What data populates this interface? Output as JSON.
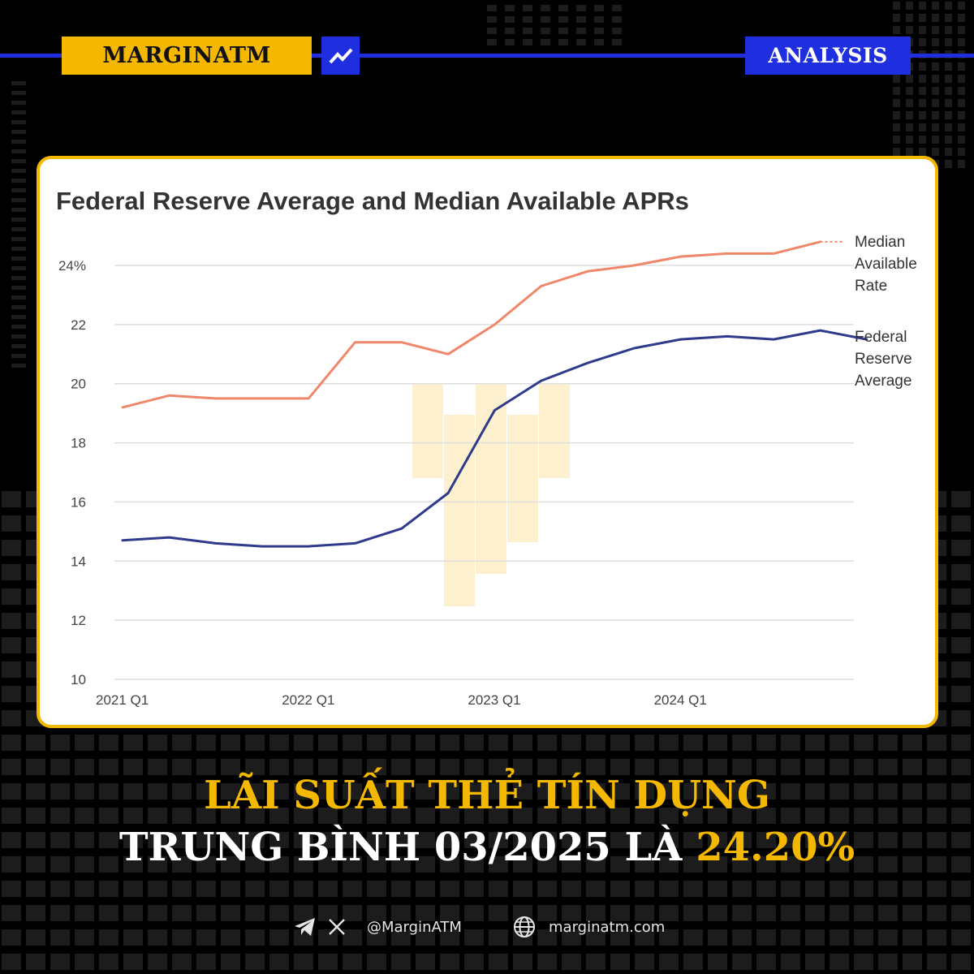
{
  "header": {
    "brand": "MARGINATM",
    "tag": "ANALYSIS"
  },
  "colors": {
    "background": "#000000",
    "brand_yellow": "#f5b800",
    "brand_blue": "#1f2fe0",
    "median_line": "#f0876a",
    "fed_line": "#2e3a8c",
    "watermark": "#fdf0cf"
  },
  "chart_data": {
    "type": "line",
    "title": "Federal Reserve Average and Median Available APRs",
    "xlabel": "",
    "ylabel": "",
    "ylim": [
      10,
      24
    ],
    "yticks": [
      {
        "value": 24,
        "label": "24%"
      },
      {
        "value": 22,
        "label": "22"
      },
      {
        "value": 20,
        "label": "20"
      },
      {
        "value": 18,
        "label": "18"
      },
      {
        "value": 16,
        "label": "16"
      },
      {
        "value": 14,
        "label": "14"
      },
      {
        "value": 12,
        "label": "12"
      },
      {
        "value": 10,
        "label": "10"
      }
    ],
    "xticks": [
      {
        "index": 0,
        "label": "2021 Q1"
      },
      {
        "index": 4,
        "label": "2022 Q1"
      },
      {
        "index": 8,
        "label": "2023 Q1"
      },
      {
        "index": 12,
        "label": "2024 Q1"
      }
    ],
    "grid": true,
    "legend": "right (labels at line ends)",
    "series": [
      {
        "name": "Median Available Rate",
        "label_lines": [
          "Median",
          "Available",
          "Rate"
        ],
        "color": "#f0876a",
        "values": [
          19.2,
          19.6,
          19.5,
          19.5,
          19.5,
          21.4,
          21.4,
          21.0,
          22.0,
          23.3,
          23.8,
          24.0,
          24.3,
          24.4,
          24.4,
          24.8
        ],
        "dotted_extension_to": 24.8
      },
      {
        "name": "Federal Reserve Average",
        "label_lines": [
          "Federal",
          "Reserve",
          "Average"
        ],
        "color": "#2e3a8c",
        "values": [
          14.7,
          14.8,
          14.6,
          14.5,
          14.5,
          14.6,
          15.1,
          16.3,
          19.1,
          20.1,
          20.7,
          21.2,
          21.5,
          21.6,
          21.5,
          21.8,
          21.5
        ]
      }
    ]
  },
  "headline": {
    "line1": "LÃI SUẤT THẺ TÍN DỤNG",
    "line2_main": "TRUNG BÌNH 03/2025 LÀ ",
    "line2_accent": "24.20%"
  },
  "footer": {
    "telegram_icon": "telegram-icon",
    "x_icon": "x-icon",
    "globe_icon": "globe-icon",
    "handle": "@MarginATM",
    "website": "marginatm.com"
  }
}
